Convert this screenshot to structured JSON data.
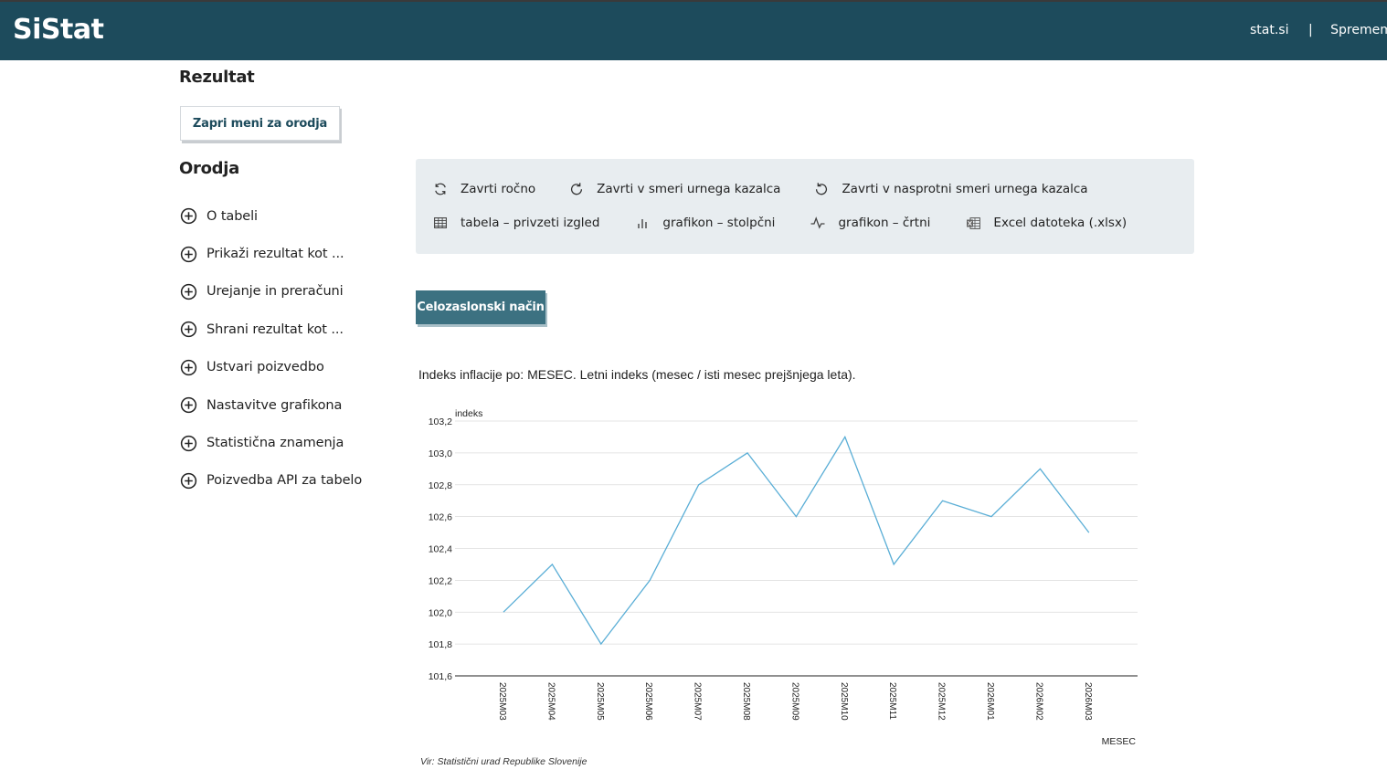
{
  "header": {
    "logo": "SiStat",
    "links": [
      "stat.si",
      "Spremembe"
    ],
    "separator": "|"
  },
  "sidebar": {
    "result_heading": "Rezultat",
    "close_tools_label": "Zapri meni za orodja",
    "tools_heading": "Orodja",
    "tools": [
      {
        "label": "O tabeli"
      },
      {
        "label": "Prikaži rezultat kot ..."
      },
      {
        "label": "Urejanje in preračuni"
      },
      {
        "label": "Shrani rezultat kot ..."
      },
      {
        "label": "Ustvari poizvedbo"
      },
      {
        "label": "Nastavitve grafikona"
      },
      {
        "label": "Statistična znamenja"
      },
      {
        "label": "Poizvedba API za tabelo"
      }
    ]
  },
  "toolbar": {
    "row1": [
      {
        "label": "Zavrti ročno",
        "icon": "rotate-manual-icon"
      },
      {
        "label": "Zavrti v smeri urnega kazalca",
        "icon": "rotate-clockwise-icon"
      },
      {
        "label": "Zavrti v nasprotni smeri urnega kazalca",
        "icon": "rotate-counterclockwise-icon"
      }
    ],
    "row2": [
      {
        "label": "tabela – privzeti izgled",
        "icon": "table-icon"
      },
      {
        "label": "grafikon – stolpčni",
        "icon": "bar-chart-icon"
      },
      {
        "label": "grafikon – črtni",
        "icon": "line-chart-icon"
      },
      {
        "label": "Excel datoteka (.xlsx)",
        "icon": "excel-icon"
      }
    ]
  },
  "fullscreen_label": "Celozaslonski način",
  "chart_data": {
    "type": "line",
    "title": "Indeks inflacije po: MESEC. Letni indeks (mesec / isti mesec prejšnjega leta).",
    "ylabel": "indeks",
    "xlabel": "MESEC",
    "x": [
      "2025M03",
      "2025M04",
      "2025M05",
      "2025M06",
      "2025M07",
      "2025M08",
      "2025M09",
      "2025M10",
      "2025M11",
      "2025M12",
      "2026M01",
      "2026M02",
      "2026M03"
    ],
    "values": [
      102.0,
      102.3,
      101.8,
      102.2,
      102.8,
      103.0,
      102.6,
      103.1,
      102.3,
      102.7,
      102.6,
      102.9,
      102.5
    ],
    "ylim": [
      101.6,
      103.2
    ],
    "yticks": [
      "101,6",
      "101,8",
      "102,0",
      "102,2",
      "102,4",
      "102,6",
      "102,8",
      "103,0",
      "103,2"
    ],
    "grid": true,
    "line_color": "#5aaed6",
    "source": "Vir: Statistični urad Republike Slovenije"
  }
}
